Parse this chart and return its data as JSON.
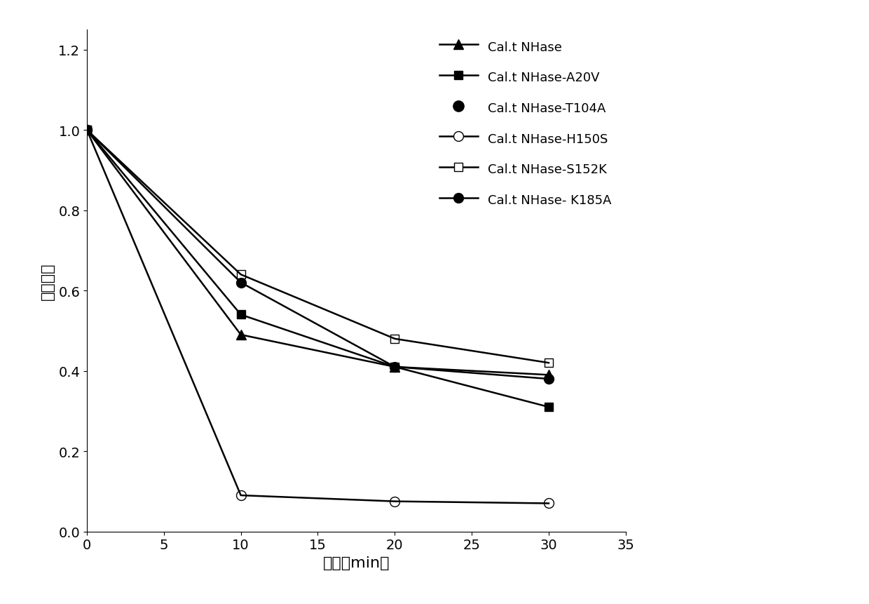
{
  "title": "",
  "xlabel": "时间（min）",
  "ylabel": "相对酶活",
  "xlim": [
    0,
    35
  ],
  "ylim": [
    0,
    1.25
  ],
  "xticks": [
    0,
    5,
    10,
    15,
    20,
    25,
    30,
    35
  ],
  "yticks": [
    0,
    0.2,
    0.4,
    0.6,
    0.8,
    1.0,
    1.2
  ],
  "series": [
    {
      "label": "Cal.t NHase",
      "x": [
        0,
        10,
        20,
        30
      ],
      "y": [
        1.0,
        0.49,
        0.41,
        0.39
      ],
      "marker": "^",
      "markersize": 10,
      "fillstyle": "full",
      "color": "#000000",
      "linewidth": 1.8,
      "linestyle": "-",
      "plot": true
    },
    {
      "label": "Cal.t NHase-A20V",
      "x": [
        0,
        10,
        20,
        30
      ],
      "y": [
        1.0,
        0.54,
        0.41,
        0.31
      ],
      "marker": "s",
      "markersize": 9,
      "fillstyle": "full",
      "color": "#000000",
      "linewidth": 1.8,
      "linestyle": "-",
      "plot": true
    },
    {
      "label": "Cal.t NHase-T104A",
      "x": [],
      "y": [],
      "marker": "o",
      "markersize": 11,
      "fillstyle": "full",
      "color": "#000000",
      "linewidth": 0,
      "linestyle": "none",
      "plot": false
    },
    {
      "label": "Cal.t NHase-H150S",
      "x": [
        0,
        10,
        20,
        30
      ],
      "y": [
        1.0,
        0.09,
        0.075,
        0.07
      ],
      "marker": "o",
      "markersize": 10,
      "fillstyle": "none",
      "color": "#000000",
      "linewidth": 1.8,
      "linestyle": "-",
      "plot": true
    },
    {
      "label": "Cal.t NHase-S152K",
      "x": [
        0,
        10,
        20,
        30
      ],
      "y": [
        1.0,
        0.64,
        0.48,
        0.42
      ],
      "marker": "s",
      "markersize": 9,
      "fillstyle": "none",
      "color": "#000000",
      "linewidth": 1.8,
      "linestyle": "-",
      "plot": true
    },
    {
      "label": "Cal.t NHase- K185A",
      "x": [
        0,
        10,
        20,
        30
      ],
      "y": [
        1.0,
        0.62,
        0.41,
        0.38
      ],
      "marker": "o",
      "markersize": 10,
      "fillstyle": "full",
      "color": "#000000",
      "linewidth": 1.8,
      "linestyle": "-",
      "plot": true
    }
  ],
  "legend_fontsize": 13,
  "axis_fontsize": 16,
  "tick_fontsize": 14,
  "figsize": [
    12.4,
    8.62
  ],
  "dpi": 100
}
